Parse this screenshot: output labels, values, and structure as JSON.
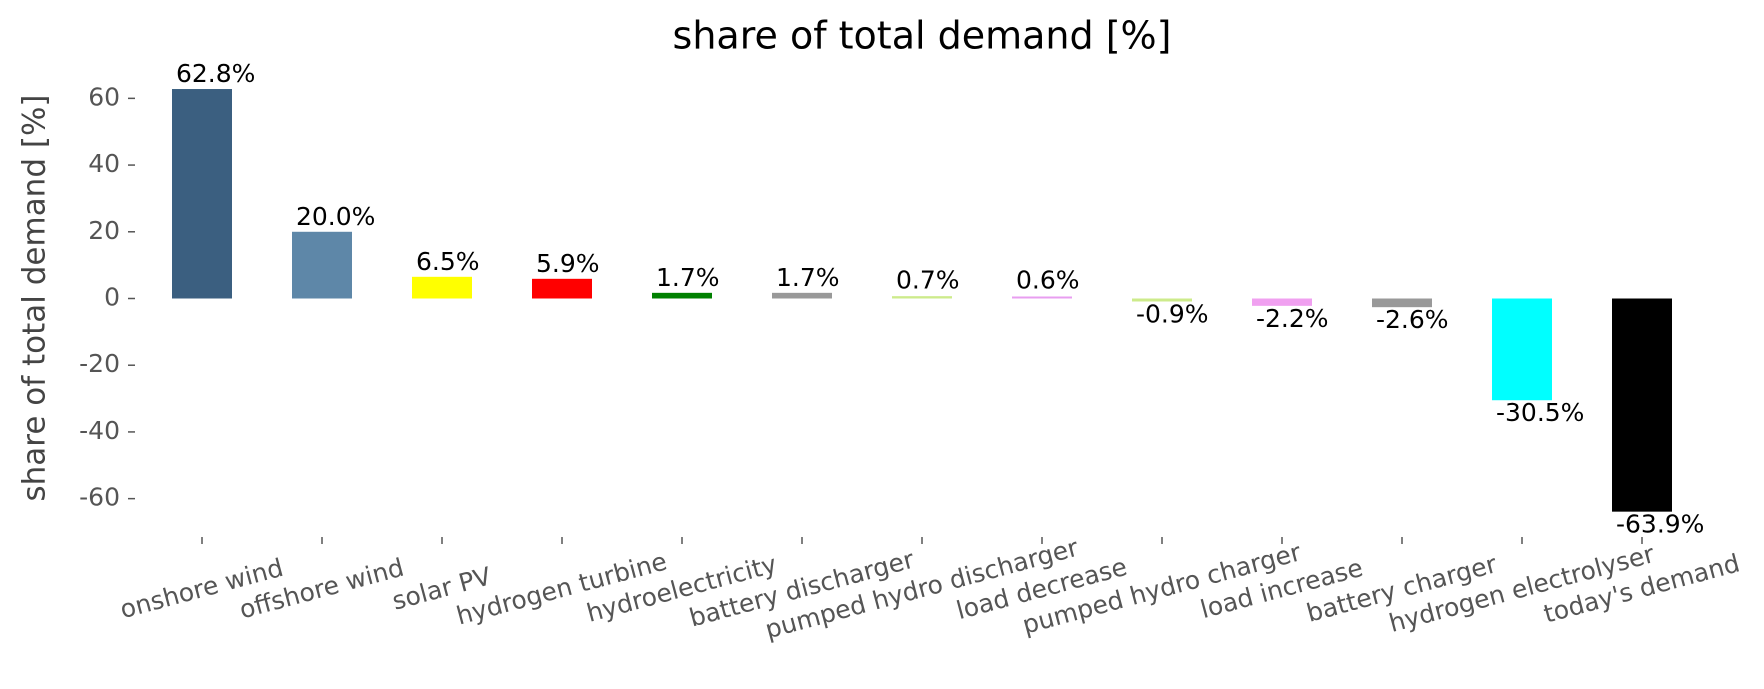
{
  "chart_data": {
    "type": "bar",
    "title": "share of total demand [%]",
    "y_label": "share of total demand [%]",
    "categories": [
      "onshore wind",
      "offshore wind",
      "solar PV",
      "hydrogen turbine",
      "hydroelectricity",
      "battery discharger",
      "pumped hydro discharger",
      "load decrease",
      "pumped hydro charger",
      "load increase",
      "battery charger",
      "hydrogen electrolyser",
      "today's demand"
    ],
    "values": [
      62.8,
      20.0,
      6.5,
      5.9,
      1.7,
      1.7,
      0.7,
      0.6,
      -0.9,
      -2.2,
      -2.6,
      -30.5,
      -63.9
    ],
    "value_labels": [
      "62.8%",
      "20.0%",
      "6.5%",
      "5.9%",
      "1.7%",
      "1.7%",
      "0.7%",
      "0.6%",
      "-0.9%",
      "-2.2%",
      "-2.6%",
      "-30.5%",
      "-63.9%"
    ],
    "colors": [
      "#3b5f80",
      "#5e87a8",
      "#ffff00",
      "#ff0000",
      "#008000",
      "#999999",
      "#cdeb8b",
      "#e89ef0",
      "#cdeb8b",
      "#f0a0f0",
      "#999999",
      "#00ffff",
      "#000000"
    ],
    "ylim": [
      -70,
      70
    ],
    "yticks": [
      -60,
      -40,
      -20,
      0,
      20,
      40,
      60
    ],
    "grid": false
  }
}
